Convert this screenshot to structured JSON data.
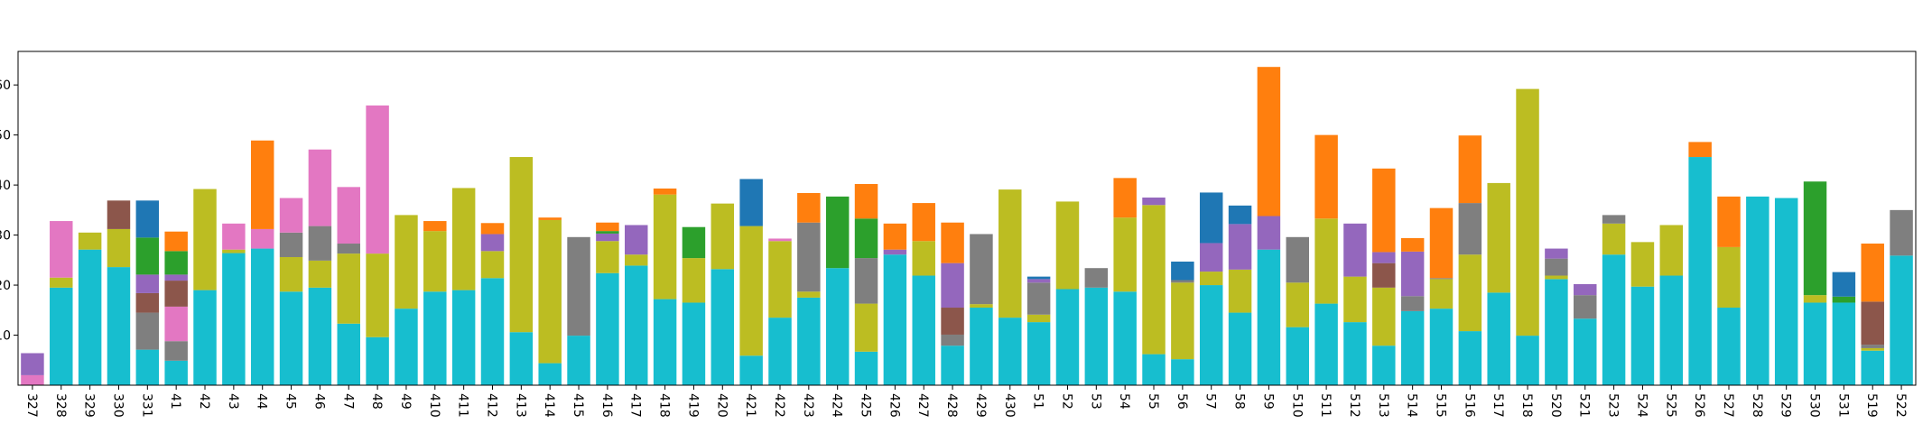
{
  "chart_data": {
    "type": "stacked_bar",
    "categories": [
      "327",
      "328",
      "329",
      "330",
      "331",
      "41",
      "42",
      "43",
      "44",
      "45",
      "46",
      "47",
      "48",
      "49",
      "410",
      "411",
      "412",
      "413",
      "414",
      "415",
      "416",
      "417",
      "418",
      "419",
      "420",
      "421",
      "422",
      "423",
      "424",
      "425",
      "426",
      "427",
      "428",
      "429",
      "430",
      "51",
      "52",
      "53",
      "54",
      "55",
      "56",
      "57",
      "58",
      "59",
      "510",
      "511",
      "512",
      "513",
      "514",
      "515",
      "516",
      "517",
      "518",
      "520",
      "521",
      "523",
      "524",
      "525",
      "526",
      "527",
      "528",
      "529",
      "530",
      "531",
      "519",
      "522"
    ],
    "ylim": [
      0,
      66.7
    ],
    "yticks": [
      10,
      20,
      30,
      40,
      50,
      60
    ],
    "series": [
      {
        "color": "#17becf",
        "values": [
          0,
          19.5,
          27.1,
          23.6,
          7.1,
          4.9,
          19,
          26.4,
          27.3,
          18.7,
          19.5,
          12.3,
          9.6,
          15.3,
          18.7,
          19,
          21.4,
          10.6,
          4.4,
          9.9,
          22.4,
          23.9,
          17.2,
          16.5,
          23.2,
          5.9,
          13.5,
          17.5,
          23.4,
          6.7,
          26.1,
          21.9,
          7.9,
          15.5,
          13.5,
          12.6,
          19.2,
          19.5,
          18.7,
          6.2,
          5.2,
          20,
          14.5,
          27.1,
          11.6,
          16.3,
          12.6,
          7.9,
          14.8,
          15.3,
          10.8,
          18.5,
          9.9,
          21.2,
          13.3,
          26.1,
          19.7,
          21.9,
          45.6,
          15.5,
          37.7,
          37.4,
          16.5,
          16.5,
          6.9,
          25.9
        ]
      },
      {
        "color": "#bcbd22",
        "values": [
          0,
          2,
          3.4,
          7.6,
          0,
          0,
          20.2,
          0.7,
          0,
          6.9,
          5.4,
          14,
          16.7,
          18.7,
          12.1,
          20.4,
          5.4,
          35,
          28.6,
          0,
          6.4,
          2.2,
          20.9,
          8.9,
          13.1,
          25.9,
          15.3,
          1.2,
          0,
          9.6,
          0,
          6.9,
          0,
          0.7,
          25.6,
          1.5,
          17.5,
          0,
          14.8,
          29.8,
          15.3,
          2.7,
          8.6,
          0,
          8.9,
          17,
          9.1,
          11.6,
          0,
          5.9,
          15.3,
          21.9,
          49.3,
          0.7,
          0,
          6.2,
          8.9,
          10.1,
          0,
          12.1,
          0,
          0,
          1.5,
          0,
          0.5,
          0
        ]
      },
      {
        "color": "#7f7f7f",
        "values": [
          0,
          0,
          0,
          0,
          7.4,
          3.9,
          0,
          0,
          0,
          4.9,
          6.9,
          2,
          0,
          0,
          0,
          0,
          0,
          0,
          0,
          19.7,
          0,
          0,
          0,
          0,
          0,
          0,
          0,
          13.8,
          0,
          9.1,
          0,
          0,
          2.2,
          14,
          0,
          6.4,
          0,
          3.9,
          0,
          0,
          0.5,
          0,
          0,
          0,
          9.1,
          0,
          0,
          0,
          3,
          0.2,
          10.3,
          0,
          0,
          3.4,
          4.7,
          1.7,
          0,
          0,
          0,
          0,
          0,
          0,
          0,
          0,
          0.7,
          9.1
        ]
      },
      {
        "color": "#e377c2",
        "values": [
          2,
          11.3,
          0,
          0,
          0,
          6.9,
          0,
          5.2,
          3.9,
          6.9,
          15.3,
          11.3,
          29.6,
          0,
          0,
          0,
          0,
          0,
          0,
          0,
          0,
          0,
          0,
          0,
          0,
          0,
          0.5,
          0,
          0,
          0,
          0,
          0,
          0,
          0,
          0,
          0,
          0,
          0,
          0,
          0,
          0,
          0,
          0,
          0,
          0,
          0,
          0,
          0,
          0,
          0,
          0,
          0,
          0,
          0,
          0,
          0,
          0,
          0,
          0,
          0,
          0,
          0,
          0,
          0,
          0,
          0
        ]
      },
      {
        "color": "#8c564b",
        "values": [
          0,
          0,
          0,
          5.7,
          3.9,
          5.2,
          0,
          0,
          0,
          0,
          0,
          0,
          0,
          0,
          0,
          0,
          0,
          0,
          0,
          0,
          0,
          0,
          0,
          0,
          0,
          0,
          0,
          0,
          0,
          0,
          0,
          0,
          5.4,
          0,
          0,
          0,
          0,
          0,
          0,
          0,
          0,
          0,
          0,
          0,
          0,
          0,
          0,
          4.9,
          0,
          0,
          0,
          0,
          0,
          0,
          0,
          0,
          0,
          0,
          0,
          0,
          0,
          0,
          0,
          0,
          8.6,
          0
        ]
      },
      {
        "color": "#9467bd",
        "values": [
          4.4,
          0,
          0,
          0,
          3.7,
          1.2,
          0,
          0,
          0,
          0,
          0,
          0,
          0,
          0,
          0,
          0,
          3.4,
          0,
          0,
          0,
          1.5,
          5.9,
          0,
          0,
          0,
          0,
          0,
          0,
          0,
          0,
          1,
          0,
          8.9,
          0,
          0,
          0.7,
          0,
          0,
          0,
          1.5,
          0,
          5.7,
          9.1,
          6.7,
          0,
          0,
          10.6,
          2.2,
          8.9,
          0,
          0,
          0,
          0,
          2,
          2.2,
          0,
          0,
          0,
          0,
          0,
          0,
          0,
          0,
          0,
          0,
          0
        ]
      },
      {
        "color": "#2ca02c",
        "values": [
          0,
          0,
          0,
          0,
          7.4,
          4.7,
          0,
          0,
          0,
          0,
          0,
          0,
          0,
          0,
          0,
          0,
          0,
          0,
          0,
          0,
          0.5,
          0,
          0,
          6.2,
          0,
          0,
          0,
          0,
          14.3,
          7.9,
          0,
          0,
          0,
          0,
          0,
          0,
          0,
          0,
          0,
          0,
          0,
          0,
          0,
          0,
          0,
          0,
          0,
          0,
          0,
          0,
          0,
          0,
          0,
          0,
          0,
          0,
          0,
          0,
          0,
          0,
          0,
          0,
          22.7,
          1.2,
          0,
          0
        ]
      },
      {
        "color": "#ff7f0e",
        "values": [
          0,
          0,
          0,
          0,
          0,
          3.9,
          0,
          0,
          17.7,
          0,
          0,
          0,
          0,
          0,
          2,
          0,
          2.2,
          0,
          0.5,
          0,
          1.7,
          0,
          1.2,
          0,
          0,
          0,
          0,
          5.9,
          0,
          6.9,
          5.2,
          7.6,
          8.1,
          0,
          0,
          0,
          0,
          0,
          7.9,
          0,
          0,
          0,
          0,
          29.8,
          0,
          16.7,
          0,
          16.7,
          2.7,
          14,
          13.5,
          0,
          0,
          0,
          0,
          0,
          0,
          0,
          3,
          10.1,
          0,
          0,
          0,
          0,
          11.6,
          0
        ]
      },
      {
        "color": "#1f77b4",
        "values": [
          0,
          0,
          0,
          0,
          7.4,
          0,
          0,
          0,
          0,
          0,
          0,
          0,
          0,
          0,
          0,
          0,
          0,
          0,
          0,
          0,
          0,
          0,
          0,
          0,
          0,
          9.4,
          0,
          0,
          0,
          0,
          0,
          0,
          0,
          0,
          0,
          0.5,
          0,
          0,
          0,
          0,
          3.7,
          10.1,
          3.7,
          0,
          0,
          0,
          0,
          0,
          0,
          0,
          0,
          0,
          0,
          0,
          0,
          0,
          0,
          0,
          0,
          0,
          0,
          0,
          0,
          4.9,
          0,
          0
        ]
      }
    ]
  }
}
